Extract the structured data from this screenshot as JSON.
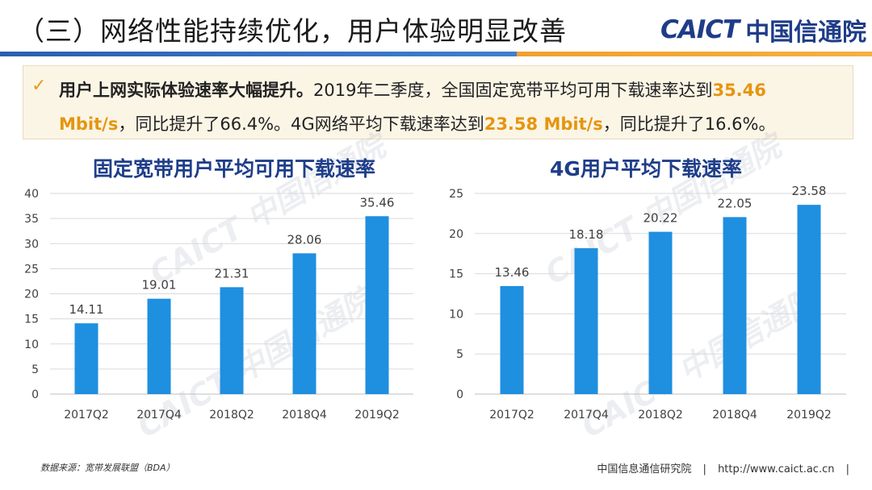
{
  "header": {
    "title": "（三）网络性能持续优化，用户体验明显改善",
    "logo_en": "CAICT",
    "logo_cn": "中国信通院"
  },
  "summary": {
    "check": "✓",
    "lead": "用户上网实际体验速率大幅提升。",
    "text1": "2019年二季度，全国固定宽带平均可用下载速率达到",
    "value1": "35.46",
    "value1_unit": "Mbit/s",
    "text2": "，同比提升了66.4%。4G网络平均下载速率达到",
    "value2": "23.58 Mbit/s",
    "text3": "，同比提升了16.6%。"
  },
  "watermark": {
    "en": "CAICT",
    "cn": "中国信通院"
  },
  "chart_data": [
    {
      "type": "bar",
      "title": "固定宽带用户平均可用下载速率",
      "categories": [
        "2017Q2",
        "2017Q4",
        "2018Q2",
        "2018Q4",
        "2019Q2"
      ],
      "values": [
        14.11,
        19.01,
        21.31,
        28.06,
        35.46
      ],
      "data_labels": [
        "14.11",
        "19.01",
        "21.31",
        "28.06",
        "35.46"
      ],
      "yticks": [
        "0",
        "5",
        "10",
        "15",
        "20",
        "25",
        "30",
        "35",
        "40"
      ],
      "ylim": [
        0,
        40
      ],
      "color": "#1f8fe0"
    },
    {
      "type": "bar",
      "title": "4G用户平均下载速率",
      "categories": [
        "2017Q2",
        "2017Q4",
        "2018Q2",
        "2018Q4",
        "2019Q2"
      ],
      "values": [
        13.46,
        18.18,
        20.22,
        22.05,
        23.58
      ],
      "data_labels": [
        "13.46",
        "18.18",
        "20.22",
        "22.05",
        "23.58"
      ],
      "yticks": [
        "0",
        "5",
        "10",
        "15",
        "20",
        "25"
      ],
      "ylim": [
        0,
        25
      ],
      "color": "#1f8fe0"
    }
  ],
  "footer": {
    "source": "数据来源：宽带发展联盟（BDA）",
    "org": "中国信息通信研究院",
    "sep": "|",
    "url": "http://www.caict.ac.cn",
    "end": "|"
  }
}
